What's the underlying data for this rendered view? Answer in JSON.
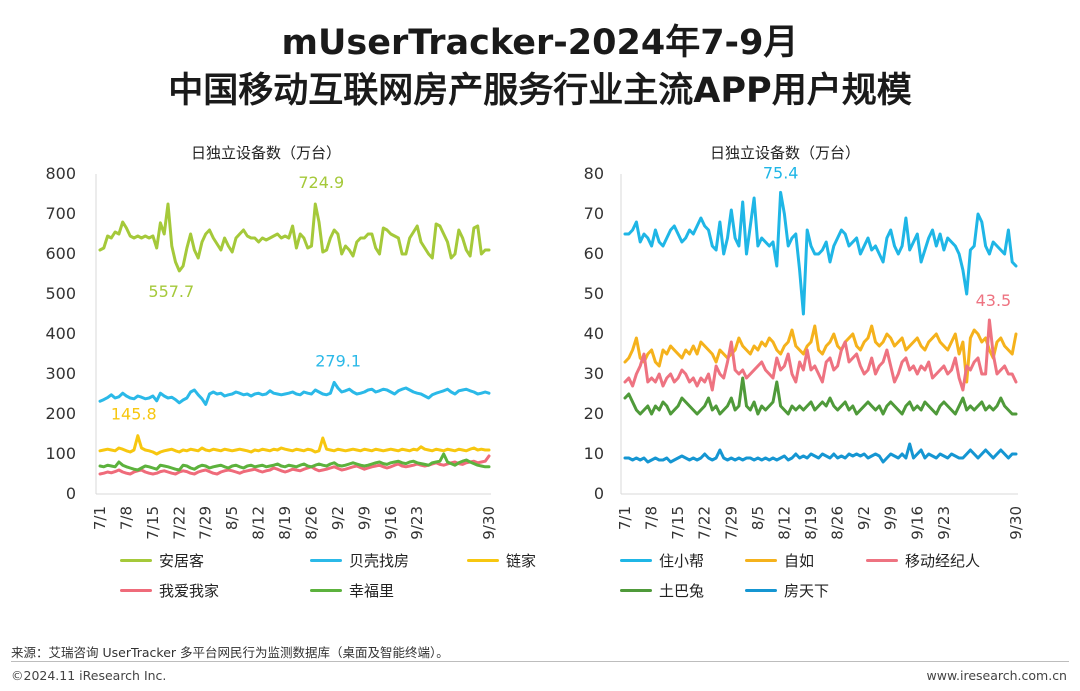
{
  "header": {
    "title_line1": "mUserTracker-2024年7-9月",
    "title_line2": "中国移动互联网房产服务行业主流APP用户规模"
  },
  "chart_data": [
    {
      "type": "line",
      "ylabel": "日独立设备数（万台）",
      "ylim": [
        0,
        800
      ],
      "yticks": [
        0,
        100,
        200,
        300,
        400,
        500,
        600,
        700,
        800
      ],
      "x_tick_labels": [
        "7/1",
        "7/8",
        "7/15",
        "7/22",
        "7/29",
        "8/5",
        "8/12",
        "8/19",
        "8/26",
        "9/2",
        "9/9",
        "9/16",
        "9/23",
        "9/30"
      ],
      "series": [
        {
          "name": "安居客",
          "color": "#a5c93a",
          "values": [
            610,
            615,
            645,
            640,
            655,
            650,
            680,
            665,
            645,
            640,
            645,
            640,
            645,
            640,
            645,
            615,
            678,
            650,
            725,
            620,
            580,
            557.7,
            570,
            615,
            650,
            610,
            590,
            630,
            650,
            660,
            640,
            625,
            610,
            640,
            620,
            605,
            640,
            650,
            660,
            645,
            640,
            640,
            630,
            640,
            635,
            640,
            645,
            650,
            640,
            645,
            640,
            670,
            615,
            650,
            640,
            615,
            620,
            724.9,
            680,
            605,
            610,
            640,
            660,
            650,
            600,
            620,
            610,
            595,
            630,
            640,
            640,
            650,
            650,
            615,
            600,
            665,
            660,
            650,
            645,
            640,
            600,
            600,
            640,
            655,
            670,
            630,
            615,
            600,
            590,
            675,
            670,
            650,
            630,
            590,
            600,
            660,
            640,
            610,
            595,
            665,
            670,
            600,
            610,
            610
          ]
        },
        {
          "name": "贝壳找房",
          "color": "#2bb9e8",
          "values": [
            232,
            236,
            241,
            248,
            240,
            243,
            252,
            245,
            240,
            238,
            245,
            242,
            238,
            240,
            245,
            233,
            252,
            245,
            240,
            242,
            236,
            228,
            235,
            240,
            255,
            260,
            248,
            238,
            224,
            250,
            255,
            250,
            252,
            245,
            248,
            250,
            255,
            252,
            248,
            250,
            245,
            250,
            252,
            248,
            250,
            258,
            252,
            250,
            248,
            250,
            252,
            255,
            250,
            248,
            255,
            252,
            250,
            260,
            255,
            250,
            248,
            252,
            279.1,
            265,
            255,
            258,
            262,
            255,
            250,
            252,
            255,
            260,
            262,
            255,
            258,
            262,
            260,
            255,
            250,
            258,
            262,
            265,
            260,
            255,
            252,
            250,
            245,
            240,
            248,
            252,
            255,
            258,
            262,
            255,
            250,
            258,
            260,
            262,
            258,
            255,
            250,
            252,
            255,
            252
          ]
        },
        {
          "name": "链家",
          "color": "#f7c710",
          "values": [
            108,
            110,
            112,
            110,
            108,
            115,
            112,
            108,
            105,
            110,
            145.8,
            115,
            110,
            108,
            105,
            100,
            105,
            108,
            110,
            112,
            108,
            105,
            110,
            108,
            112,
            110,
            108,
            115,
            110,
            108,
            112,
            110,
            108,
            112,
            110,
            108,
            110,
            112,
            110,
            108,
            105,
            110,
            108,
            112,
            110,
            108,
            112,
            110,
            115,
            112,
            110,
            108,
            112,
            110,
            108,
            112,
            110,
            105,
            108,
            140,
            112,
            110,
            108,
            112,
            110,
            108,
            110,
            112,
            110,
            108,
            112,
            110,
            108,
            112,
            110,
            108,
            110,
            112,
            110,
            108,
            112,
            110,
            108,
            112,
            110,
            118,
            112,
            110,
            108,
            112,
            110,
            108,
            112,
            110,
            108,
            112,
            110,
            108,
            112,
            115,
            110,
            112,
            110,
            110
          ]
        },
        {
          "name": "我爱我家",
          "color": "#ef6b7a",
          "values": [
            50,
            52,
            55,
            53,
            56,
            60,
            55,
            52,
            50,
            55,
            58,
            60,
            55,
            52,
            50,
            52,
            56,
            58,
            55,
            52,
            50,
            55,
            58,
            56,
            52,
            50,
            55,
            58,
            60,
            56,
            52,
            50,
            55,
            58,
            60,
            58,
            55,
            52,
            56,
            58,
            60,
            62,
            58,
            55,
            58,
            60,
            65,
            62,
            58,
            55,
            58,
            62,
            60,
            58,
            62,
            65,
            68,
            62,
            58,
            60,
            62,
            65,
            68,
            64,
            60,
            62,
            65,
            68,
            70,
            66,
            62,
            65,
            68,
            70,
            72,
            68,
            65,
            68,
            72,
            75,
            70,
            68,
            70,
            72,
            75,
            72,
            70,
            72,
            75,
            78,
            74,
            72,
            75,
            78,
            80,
            76,
            74,
            78,
            80,
            82,
            78,
            80,
            82,
            95
          ]
        },
        {
          "name": "幸福里",
          "color": "#5cb23d",
          "values": [
            70,
            68,
            72,
            70,
            68,
            80,
            72,
            68,
            65,
            62,
            60,
            65,
            70,
            68,
            65,
            62,
            72,
            70,
            68,
            65,
            62,
            60,
            72,
            70,
            65,
            62,
            68,
            72,
            70,
            65,
            68,
            70,
            72,
            68,
            65,
            70,
            72,
            68,
            65,
            70,
            72,
            68,
            70,
            72,
            68,
            70,
            72,
            75,
            70,
            68,
            72,
            70,
            68,
            72,
            75,
            70,
            68,
            72,
            75,
            72,
            70,
            75,
            78,
            72,
            70,
            72,
            75,
            78,
            75,
            72,
            70,
            72,
            75,
            78,
            80,
            76,
            74,
            78,
            80,
            82,
            78,
            76,
            80,
            82,
            78,
            76,
            74,
            72,
            78,
            80,
            82,
            100,
            80,
            76,
            72,
            78,
            82,
            85,
            80,
            76,
            72,
            70,
            68,
            68
          ]
        }
      ],
      "annotations": [
        "724.9",
        "557.7",
        "279.1",
        "145.8"
      ]
    },
    {
      "type": "line",
      "ylabel": "日独立设备数（万台）",
      "ylim": [
        0,
        80
      ],
      "yticks": [
        0,
        10,
        20,
        30,
        40,
        50,
        60,
        70,
        80
      ],
      "x_tick_labels": [
        "7/1",
        "7/8",
        "7/15",
        "7/22",
        "7/29",
        "8/5",
        "8/12",
        "8/19",
        "8/26",
        "9/2",
        "9/9",
        "9/16",
        "9/23",
        "9/30"
      ],
      "series": [
        {
          "name": "住小帮",
          "color": "#1fb6e6",
          "values": [
            65,
            65,
            66,
            68,
            63,
            65,
            64,
            62,
            66,
            63,
            62,
            64,
            66,
            67,
            65,
            63,
            64,
            66,
            65,
            67,
            69,
            67,
            66,
            62,
            61,
            68,
            60,
            64,
            71,
            64,
            62,
            73,
            60,
            67,
            74,
            62,
            64,
            63,
            62,
            63,
            57,
            75.4,
            70,
            62,
            64,
            65,
            56,
            45,
            66,
            62,
            60,
            60,
            61,
            63,
            58,
            62,
            64,
            66,
            65,
            62,
            63,
            64,
            60,
            62,
            64,
            61,
            62,
            60,
            58,
            64,
            66,
            62,
            60,
            62,
            69,
            61,
            63,
            65,
            58,
            61,
            64,
            66,
            62,
            65,
            61,
            64,
            63,
            62,
            60,
            56,
            50,
            61,
            62,
            70,
            68,
            62,
            60,
            63,
            62,
            61,
            60,
            66,
            58,
            57
          ]
        },
        {
          "name": "自如",
          "color": "#f5b21c",
          "values": [
            33,
            34,
            36,
            39,
            34,
            33,
            35,
            36,
            33,
            32,
            36,
            35,
            37,
            36,
            35,
            34,
            36,
            35,
            37,
            35,
            38,
            37,
            36,
            35,
            33,
            36,
            35,
            34,
            35,
            36,
            39,
            37,
            36,
            35,
            37,
            36,
            38,
            37,
            39,
            38,
            36,
            35,
            37,
            38,
            41,
            37,
            36,
            35,
            37,
            38,
            42,
            36,
            35,
            37,
            38,
            40,
            37,
            36,
            38,
            39,
            40,
            37,
            36,
            38,
            39,
            42,
            38,
            37,
            38,
            40,
            39,
            37,
            38,
            39,
            36,
            37,
            38,
            39,
            37,
            36,
            38,
            39,
            40,
            38,
            37,
            36,
            38,
            40,
            35,
            38,
            28,
            39,
            41,
            40,
            38,
            39,
            36,
            34,
            38,
            39,
            37,
            36,
            35,
            40
          ]
        },
        {
          "name": "移动经纪人",
          "color": "#ee7381",
          "values": [
            28,
            29,
            27,
            30,
            32,
            35,
            28,
            29,
            28,
            30,
            27,
            29,
            30,
            28,
            29,
            31,
            30,
            28,
            29,
            27,
            29,
            28,
            30,
            26,
            32,
            30,
            29,
            33,
            38,
            31,
            30,
            31,
            29,
            30,
            31,
            32,
            33,
            31,
            30,
            29,
            34,
            31,
            32,
            35,
            30,
            28,
            33,
            31,
            36,
            31,
            32,
            30,
            28,
            33,
            34,
            31,
            32,
            36,
            38,
            33,
            34,
            35,
            32,
            30,
            31,
            34,
            30,
            32,
            33,
            36,
            32,
            28,
            30,
            33,
            34,
            31,
            32,
            30,
            32,
            31,
            33,
            29,
            30,
            31,
            32,
            30,
            31,
            34,
            29,
            26,
            32,
            31,
            33,
            34,
            30,
            30,
            43.5,
            35,
            30,
            31,
            32,
            30,
            30,
            28
          ]
        },
        {
          "name": "土巴兔",
          "color": "#4f9a3a",
          "values": [
            24,
            25,
            23,
            21,
            20,
            21,
            22,
            20,
            22,
            21,
            23,
            22,
            20,
            21,
            22,
            24,
            23,
            22,
            21,
            20,
            21,
            22,
            24,
            21,
            22,
            20,
            21,
            22,
            24,
            21,
            22,
            29,
            22,
            21,
            23,
            20,
            22,
            21,
            22,
            23,
            28,
            22,
            21,
            20,
            22,
            21,
            22,
            21,
            22,
            23,
            21,
            22,
            23,
            22,
            24,
            22,
            21,
            22,
            23,
            21,
            22,
            20,
            21,
            22,
            23,
            22,
            21,
            22,
            20,
            22,
            23,
            22,
            21,
            20,
            22,
            23,
            21,
            22,
            21,
            23,
            22,
            21,
            20,
            22,
            23,
            22,
            21,
            20,
            22,
            24,
            21,
            22,
            21,
            22,
            23,
            21,
            22,
            21,
            22,
            24,
            22,
            21,
            20,
            20
          ]
        },
        {
          "name": "房天下",
          "color": "#1596d2",
          "values": [
            9,
            9,
            8.5,
            9,
            8.5,
            9,
            8,
            8.5,
            9,
            8.5,
            8.5,
            9,
            8,
            8.5,
            9,
            9.5,
            9,
            8.5,
            9,
            8.5,
            9,
            10,
            9,
            8.5,
            9,
            11,
            9,
            8.5,
            9,
            8.5,
            9,
            8.5,
            9,
            9,
            8.5,
            9,
            8.5,
            9,
            8.5,
            9,
            8.5,
            9,
            9.5,
            8.5,
            9,
            10,
            9,
            9.5,
            9,
            10,
            9.5,
            9,
            10,
            9.5,
            9,
            10,
            9,
            9.5,
            9,
            10,
            9.5,
            10,
            9.5,
            10,
            9,
            9.5,
            10,
            9.5,
            8,
            9,
            10,
            9.5,
            9,
            10,
            9,
            12.5,
            9,
            10,
            11,
            9,
            10,
            9.5,
            9,
            10,
            9.5,
            9,
            10,
            9.5,
            9,
            9,
            10,
            11,
            10,
            9,
            10,
            11,
            10,
            9,
            10,
            11,
            10,
            9,
            10,
            10
          ]
        }
      ],
      "annotations": [
        "75.4",
        "43.5"
      ]
    }
  ],
  "footer": {
    "source": "来源：艾瑞咨询 UserTracker 多平台网民行为监测数据库（桌面及智能终端）。",
    "copyright": "©2024.11 iResearch Inc.",
    "website": "www.iresearch.com.cn"
  }
}
